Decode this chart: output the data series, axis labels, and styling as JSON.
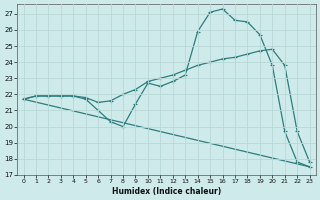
{
  "xlabel": "Humidex (Indice chaleur)",
  "bg_color": "#ceeaea",
  "grid_color": "#b8d8d8",
  "line_color": "#2e7d7d",
  "xlim": [
    -0.5,
    23.5
  ],
  "ylim": [
    17,
    27.6
  ],
  "yticks": [
    17,
    18,
    19,
    20,
    21,
    22,
    23,
    24,
    25,
    26,
    27
  ],
  "xticks": [
    0,
    1,
    2,
    3,
    4,
    5,
    6,
    7,
    8,
    9,
    10,
    11,
    12,
    13,
    14,
    15,
    16,
    17,
    18,
    19,
    20,
    21,
    22,
    23
  ],
  "line1_x": [
    0,
    1,
    2,
    3,
    4,
    5,
    6,
    7,
    8,
    9,
    10,
    11,
    12,
    13,
    14,
    15,
    16,
    17,
    18,
    19,
    20,
    21,
    22,
    23
  ],
  "line1_y": [
    21.7,
    21.9,
    21.9,
    21.9,
    21.9,
    21.8,
    21.5,
    21.6,
    22.0,
    22.3,
    22.8,
    23.0,
    23.2,
    23.5,
    23.8,
    24.0,
    24.2,
    24.3,
    24.5,
    24.7,
    24.8,
    23.8,
    19.7,
    17.8
  ],
  "line2_x": [
    0,
    1,
    2,
    3,
    4,
    5,
    6,
    7,
    8,
    9,
    10,
    11,
    12,
    13,
    14,
    15,
    16,
    17,
    18,
    19,
    20,
    21,
    22,
    23
  ],
  "line2_y": [
    21.7,
    21.9,
    21.9,
    21.9,
    21.9,
    21.7,
    21.0,
    20.3,
    20.0,
    21.4,
    22.7,
    22.5,
    22.8,
    23.2,
    25.9,
    27.1,
    27.3,
    26.6,
    26.5,
    25.7,
    23.8,
    19.7,
    17.8,
    17.5
  ],
  "line3_x": [
    0,
    23
  ],
  "line3_y": [
    21.7,
    17.5
  ]
}
